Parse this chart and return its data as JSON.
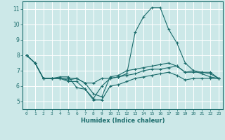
{
  "background_color": "#cce8e8",
  "grid_color": "#ffffff",
  "line_color": "#1a6b6b",
  "xlabel": "Humidex (Indice chaleur)",
  "xlim": [
    -0.5,
    23.5
  ],
  "ylim": [
    4.5,
    11.5
  ],
  "yticks": [
    5,
    6,
    7,
    8,
    9,
    10,
    11
  ],
  "xticks": [
    0,
    1,
    2,
    3,
    4,
    5,
    6,
    7,
    8,
    9,
    10,
    11,
    12,
    13,
    14,
    15,
    16,
    17,
    18,
    19,
    20,
    21,
    22,
    23
  ],
  "series": [
    [
      8.0,
      7.5,
      6.5,
      6.5,
      6.5,
      6.5,
      6.5,
      6.2,
      6.2,
      6.5,
      6.5,
      6.6,
      6.7,
      6.8,
      7.0,
      7.1,
      7.1,
      7.2,
      7.3,
      6.9,
      6.9,
      6.9,
      6.9,
      6.5
    ],
    [
      8.0,
      7.5,
      6.5,
      6.5,
      6.6,
      6.6,
      5.9,
      5.8,
      5.2,
      6.0,
      6.5,
      6.6,
      6.8,
      9.5,
      10.5,
      11.1,
      11.1,
      9.7,
      8.8,
      7.5,
      7.0,
      6.9,
      6.8,
      6.5
    ],
    [
      8.0,
      7.5,
      6.5,
      6.5,
      6.5,
      6.3,
      6.3,
      5.8,
      5.1,
      5.1,
      6.0,
      6.1,
      6.3,
      6.5,
      6.6,
      6.7,
      6.8,
      6.9,
      6.7,
      6.4,
      6.5,
      6.5,
      6.5,
      6.5
    ],
    [
      8.0,
      7.5,
      6.5,
      6.5,
      6.5,
      6.4,
      6.5,
      6.2,
      5.5,
      5.3,
      6.6,
      6.7,
      7.0,
      7.1,
      7.2,
      7.3,
      7.4,
      7.5,
      7.3,
      6.9,
      7.0,
      6.8,
      6.6,
      6.5
    ]
  ]
}
